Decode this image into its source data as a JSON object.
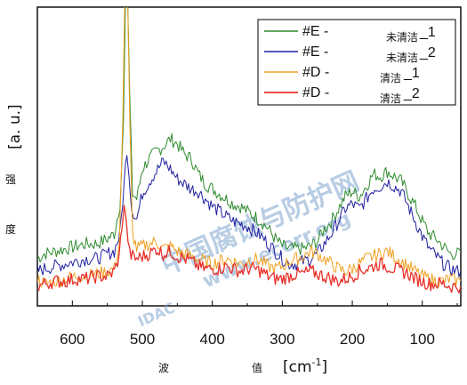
{
  "colors": {
    "green": "#2e8b2e",
    "blue": "#1f1fa0",
    "orange": "#f0a020",
    "red": "#e8302a",
    "frame": "#000000",
    "watermark": "#7fa6cf"
  },
  "watermark": {
    "text": "中国腐蚀与防护网",
    "url": "www.ecorr.org",
    "logo": "IDAC"
  },
  "chart_data": {
    "type": "line",
    "xlabel": "波 值 [cm-1]",
    "xlabel_cjk_1": "波",
    "xlabel_cjk_2": "值",
    "xlabel_unit": "[cm",
    "xlabel_sup": "-1",
    "xlabel_close": "]",
    "ylabel_unit": "[a. u.]",
    "ylabel_cjk_1": "强",
    "ylabel_cjk_2": "度",
    "xlim": [
      650,
      45
    ],
    "ylim": [
      0,
      1
    ],
    "x_ticks": [
      600,
      500,
      400,
      300,
      200,
      100
    ],
    "x_tick_labels": [
      "600",
      "500",
      "400",
      "300",
      "200",
      "100"
    ],
    "grid": false,
    "legend_position": "top-right",
    "series": [
      {
        "name": "#E - 未清洁_1",
        "legend_main": "#E -",
        "legend_sub": "未清洁",
        "legend_num": "_1",
        "color_key": "green",
        "width": 1,
        "points": [
          [
            650,
            0.16
          ],
          [
            640,
            0.18
          ],
          [
            625,
            0.19
          ],
          [
            610,
            0.2
          ],
          [
            595,
            0.21
          ],
          [
            580,
            0.22
          ],
          [
            565,
            0.22
          ],
          [
            550,
            0.24
          ],
          [
            540,
            0.26
          ],
          [
            532,
            0.38
          ],
          [
            527,
            0.7
          ],
          [
            524,
            1.2
          ],
          [
            521,
            1.2
          ],
          [
            518,
            0.8
          ],
          [
            514,
            0.42
          ],
          [
            508,
            0.4
          ],
          [
            500,
            0.52
          ],
          [
            490,
            0.56
          ],
          [
            480,
            0.59
          ],
          [
            470,
            0.61
          ],
          [
            460,
            0.64
          ],
          [
            450,
            0.62
          ],
          [
            440,
            0.58
          ],
          [
            430,
            0.56
          ],
          [
            420,
            0.5
          ],
          [
            410,
            0.46
          ],
          [
            400,
            0.44
          ],
          [
            390,
            0.42
          ],
          [
            380,
            0.4
          ],
          [
            370,
            0.38
          ],
          [
            360,
            0.37
          ],
          [
            350,
            0.35
          ],
          [
            340,
            0.33
          ],
          [
            330,
            0.31
          ],
          [
            320,
            0.28
          ],
          [
            310,
            0.24
          ],
          [
            300,
            0.21
          ],
          [
            290,
            0.2
          ],
          [
            280,
            0.2
          ],
          [
            270,
            0.2
          ],
          [
            260,
            0.21
          ],
          [
            250,
            0.23
          ],
          [
            240,
            0.28
          ],
          [
            230,
            0.31
          ],
          [
            220,
            0.36
          ],
          [
            210,
            0.41
          ],
          [
            200,
            0.43
          ],
          [
            190,
            0.41
          ],
          [
            180,
            0.45
          ],
          [
            170,
            0.5
          ],
          [
            160,
            0.49
          ],
          [
            150,
            0.51
          ],
          [
            140,
            0.49
          ],
          [
            130,
            0.47
          ],
          [
            120,
            0.42
          ],
          [
            110,
            0.37
          ],
          [
            100,
            0.31
          ],
          [
            90,
            0.26
          ],
          [
            80,
            0.24
          ],
          [
            70,
            0.21
          ],
          [
            60,
            0.18
          ],
          [
            50,
            0.18
          ],
          [
            45,
            0.19
          ]
        ]
      },
      {
        "name": "#E - 未清洁_2",
        "legend_main": "#E -",
        "legend_sub": "未清洁",
        "legend_num": "_2",
        "color_key": "blue",
        "width": 1,
        "points": [
          [
            650,
            0.11
          ],
          [
            640,
            0.12
          ],
          [
            625,
            0.13
          ],
          [
            610,
            0.14
          ],
          [
            595,
            0.15
          ],
          [
            580,
            0.16
          ],
          [
            565,
            0.16
          ],
          [
            550,
            0.18
          ],
          [
            540,
            0.19
          ],
          [
            532,
            0.26
          ],
          [
            526,
            0.46
          ],
          [
            522,
            0.6
          ],
          [
            519,
            0.5
          ],
          [
            515,
            0.36
          ],
          [
            508,
            0.32
          ],
          [
            500,
            0.42
          ],
          [
            490,
            0.47
          ],
          [
            480,
            0.51
          ],
          [
            470,
            0.55
          ],
          [
            460,
            0.52
          ],
          [
            450,
            0.48
          ],
          [
            440,
            0.46
          ],
          [
            430,
            0.44
          ],
          [
            420,
            0.43
          ],
          [
            410,
            0.4
          ],
          [
            400,
            0.37
          ],
          [
            390,
            0.35
          ],
          [
            380,
            0.33
          ],
          [
            370,
            0.31
          ],
          [
            360,
            0.3
          ],
          [
            350,
            0.29
          ],
          [
            340,
            0.27
          ],
          [
            330,
            0.25
          ],
          [
            320,
            0.22
          ],
          [
            310,
            0.19
          ],
          [
            300,
            0.16
          ],
          [
            290,
            0.14
          ],
          [
            280,
            0.14
          ],
          [
            270,
            0.15
          ],
          [
            260,
            0.16
          ],
          [
            250,
            0.18
          ],
          [
            240,
            0.22
          ],
          [
            230,
            0.26
          ],
          [
            220,
            0.31
          ],
          [
            210,
            0.36
          ],
          [
            200,
            0.38
          ],
          [
            190,
            0.36
          ],
          [
            180,
            0.4
          ],
          [
            170,
            0.44
          ],
          [
            160,
            0.45
          ],
          [
            150,
            0.47
          ],
          [
            140,
            0.45
          ],
          [
            130,
            0.43
          ],
          [
            120,
            0.37
          ],
          [
            110,
            0.31
          ],
          [
            100,
            0.25
          ],
          [
            90,
            0.2
          ],
          [
            80,
            0.17
          ],
          [
            70,
            0.14
          ],
          [
            60,
            0.12
          ],
          [
            50,
            0.11
          ],
          [
            45,
            0.11
          ]
        ]
      },
      {
        "name": "#D - 清洁_1",
        "legend_main": "#D -",
        "legend_sub": "清洁",
        "legend_num": "_1",
        "color_key": "orange",
        "width": 1,
        "points": [
          [
            650,
            0.08
          ],
          [
            640,
            0.06
          ],
          [
            625,
            0.07
          ],
          [
            610,
            0.08
          ],
          [
            595,
            0.09
          ],
          [
            580,
            0.09
          ],
          [
            565,
            0.1
          ],
          [
            550,
            0.11
          ],
          [
            540,
            0.12
          ],
          [
            533,
            0.22
          ],
          [
            528,
            0.7
          ],
          [
            525,
            1.2
          ],
          [
            521,
            1.2
          ],
          [
            518,
            0.7
          ],
          [
            514,
            0.26
          ],
          [
            508,
            0.2
          ],
          [
            500,
            0.21
          ],
          [
            490,
            0.22
          ],
          [
            480,
            0.23
          ],
          [
            470,
            0.2
          ],
          [
            460,
            0.21
          ],
          [
            450,
            0.19
          ],
          [
            440,
            0.18
          ],
          [
            430,
            0.17
          ],
          [
            420,
            0.16
          ],
          [
            410,
            0.15
          ],
          [
            400,
            0.14
          ],
          [
            390,
            0.15
          ],
          [
            380,
            0.16
          ],
          [
            370,
            0.15
          ],
          [
            360,
            0.14
          ],
          [
            350,
            0.15
          ],
          [
            340,
            0.16
          ],
          [
            330,
            0.15
          ],
          [
            320,
            0.13
          ],
          [
            310,
            0.12
          ],
          [
            300,
            0.13
          ],
          [
            290,
            0.15
          ],
          [
            280,
            0.16
          ],
          [
            270,
            0.17
          ],
          [
            260,
            0.19
          ],
          [
            250,
            0.18
          ],
          [
            240,
            0.16
          ],
          [
            230,
            0.14
          ],
          [
            220,
            0.12
          ],
          [
            210,
            0.11
          ],
          [
            200,
            0.12
          ],
          [
            190,
            0.14
          ],
          [
            180,
            0.16
          ],
          [
            170,
            0.17
          ],
          [
            160,
            0.18
          ],
          [
            150,
            0.19
          ],
          [
            140,
            0.17
          ],
          [
            130,
            0.15
          ],
          [
            120,
            0.13
          ],
          [
            110,
            0.11
          ],
          [
            100,
            0.09
          ],
          [
            90,
            0.08
          ],
          [
            80,
            0.07
          ],
          [
            70,
            0.07
          ],
          [
            60,
            0.08
          ],
          [
            50,
            0.07
          ],
          [
            45,
            0.07
          ]
        ]
      },
      {
        "name": "#D - 清洁_2",
        "legend_main": "#D -",
        "legend_sub": "清洁",
        "legend_num": "_2",
        "color_key": "red",
        "width": 1.3,
        "points": [
          [
            650,
            0.05
          ],
          [
            640,
            0.06
          ],
          [
            625,
            0.07
          ],
          [
            610,
            0.07
          ],
          [
            595,
            0.08
          ],
          [
            580,
            0.08
          ],
          [
            565,
            0.09
          ],
          [
            550,
            0.09
          ],
          [
            540,
            0.11
          ],
          [
            533,
            0.17
          ],
          [
            529,
            0.3
          ],
          [
            526,
            0.38
          ],
          [
            523,
            0.3
          ],
          [
            518,
            0.18
          ],
          [
            510,
            0.16
          ],
          [
            500,
            0.17
          ],
          [
            490,
            0.18
          ],
          [
            480,
            0.2
          ],
          [
            470,
            0.18
          ],
          [
            460,
            0.19
          ],
          [
            450,
            0.17
          ],
          [
            440,
            0.16
          ],
          [
            430,
            0.15
          ],
          [
            420,
            0.13
          ],
          [
            410,
            0.12
          ],
          [
            400,
            0.12
          ],
          [
            390,
            0.12
          ],
          [
            380,
            0.13
          ],
          [
            370,
            0.12
          ],
          [
            360,
            0.11
          ],
          [
            350,
            0.12
          ],
          [
            340,
            0.12
          ],
          [
            330,
            0.11
          ],
          [
            320,
            0.09
          ],
          [
            310,
            0.08
          ],
          [
            300,
            0.08
          ],
          [
            290,
            0.09
          ],
          [
            280,
            0.1
          ],
          [
            270,
            0.1
          ],
          [
            260,
            0.11
          ],
          [
            250,
            0.1
          ],
          [
            240,
            0.09
          ],
          [
            230,
            0.08
          ],
          [
            220,
            0.07
          ],
          [
            210,
            0.08
          ],
          [
            200,
            0.09
          ],
          [
            190,
            0.11
          ],
          [
            180,
            0.12
          ],
          [
            170,
            0.13
          ],
          [
            160,
            0.14
          ],
          [
            150,
            0.13
          ],
          [
            140,
            0.12
          ],
          [
            130,
            0.11
          ],
          [
            120,
            0.1
          ],
          [
            110,
            0.08
          ],
          [
            100,
            0.07
          ],
          [
            90,
            0.06
          ],
          [
            80,
            0.06
          ],
          [
            70,
            0.06
          ],
          [
            60,
            0.05
          ],
          [
            50,
            0.05
          ],
          [
            45,
            0.05
          ]
        ]
      }
    ]
  }
}
